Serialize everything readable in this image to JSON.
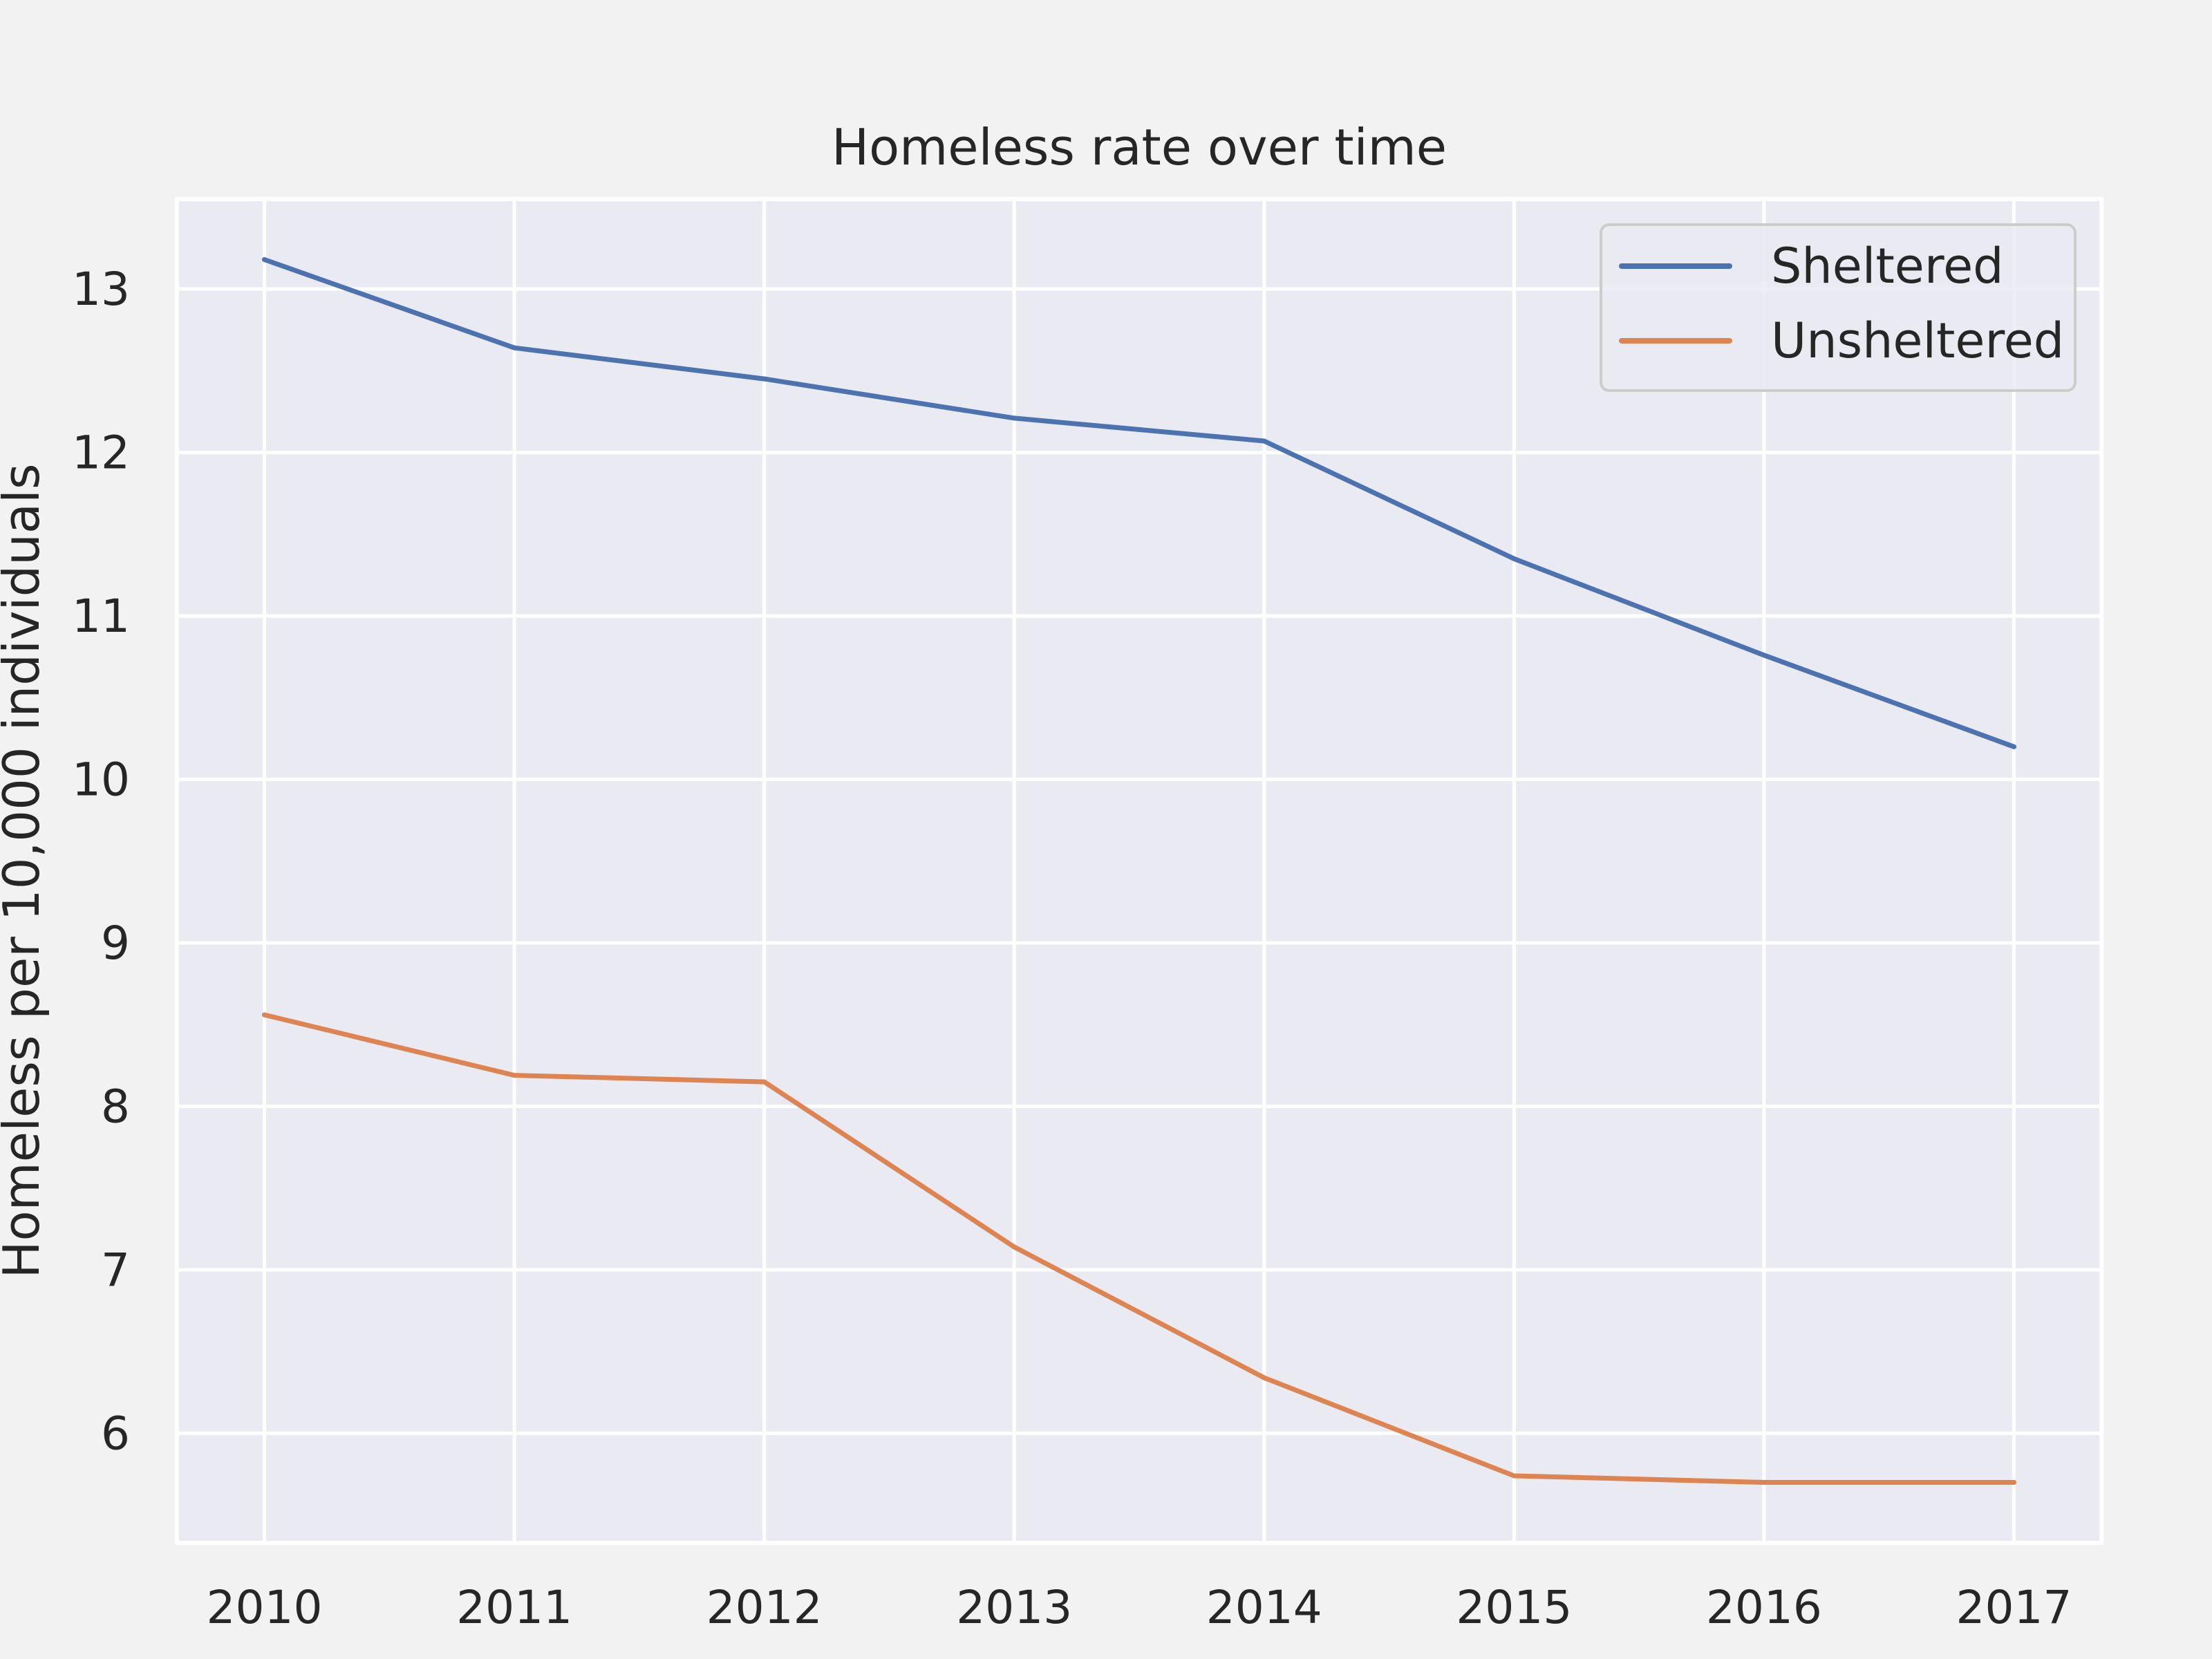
{
  "chart_data": {
    "type": "line",
    "title": "Homeless rate over time",
    "xlabel": "",
    "ylabel": "Homeless per 10,000 individuals",
    "x": [
      2010,
      2011,
      2012,
      2013,
      2014,
      2015,
      2016,
      2017
    ],
    "xticks": [
      "2010",
      "2011",
      "2012",
      "2013",
      "2014",
      "2015",
      "2016",
      "2017"
    ],
    "yticks": [
      "6",
      "7",
      "8",
      "9",
      "10",
      "11",
      "12",
      "13"
    ],
    "xlim": [
      2009.65,
      2017.35
    ],
    "ylim": [
      5.33,
      13.55
    ],
    "grid": true,
    "legend_position": "top-right",
    "series": [
      {
        "name": "Sheltered",
        "color": "#4c72b0",
        "values": [
          13.18,
          12.64,
          12.45,
          12.21,
          12.07,
          11.35,
          10.76,
          10.2
        ]
      },
      {
        "name": "Unsheltered",
        "color": "#dd8452",
        "values": [
          8.56,
          8.19,
          8.15,
          7.14,
          6.34,
          5.74,
          5.7,
          5.7
        ]
      }
    ]
  }
}
